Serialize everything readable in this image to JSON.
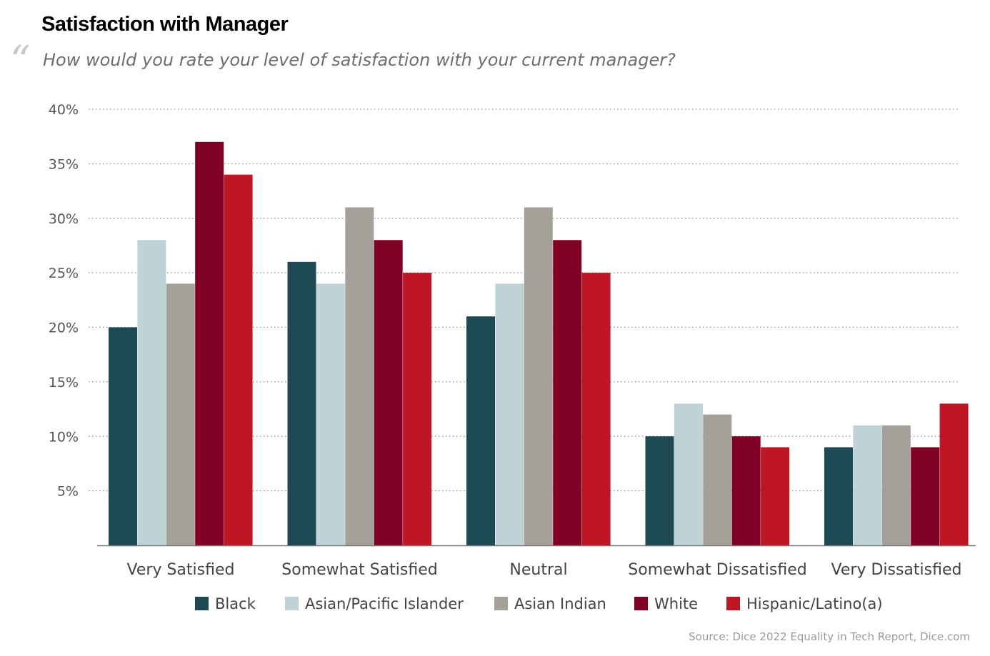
{
  "header": {
    "title": "Satisfaction with Manager",
    "quote_mark": "“",
    "subtitle": "How would you rate your level of satisfaction with your current manager?"
  },
  "footer": {
    "source": "Source: Dice 2022 Equality in Tech Report, Dice.com"
  },
  "chart_data": {
    "type": "bar",
    "categories": [
      "Very Satisfied",
      "Somewhat Satisfied",
      "Neutral",
      "Somewhat Dissatisfied",
      "Very Dissatisfied"
    ],
    "series": [
      {
        "name": "Black",
        "color": "#1d4a52",
        "values": [
          20,
          26,
          21,
          10,
          9
        ]
      },
      {
        "name": "Asian/Pacific Islander",
        "color": "#bfd2d6",
        "values": [
          28,
          24,
          24,
          13,
          11
        ]
      },
      {
        "name": "Asian Indian",
        "color": "#a5a09a",
        "values": [
          24,
          31,
          31,
          12,
          11
        ]
      },
      {
        "name": "White",
        "color": "#800026",
        "values": [
          37,
          28,
          28,
          10,
          9
        ]
      },
      {
        "name": "Hispanic/Latino(a)",
        "color": "#be1622",
        "values": [
          34,
          25,
          25,
          9,
          13
        ]
      }
    ],
    "yticks": [
      "5%",
      "10%",
      "15%",
      "20%",
      "25%",
      "30%",
      "35%",
      "40%"
    ],
    "ylim": [
      0,
      40
    ],
    "grid": true,
    "legend_position": "bottom"
  }
}
